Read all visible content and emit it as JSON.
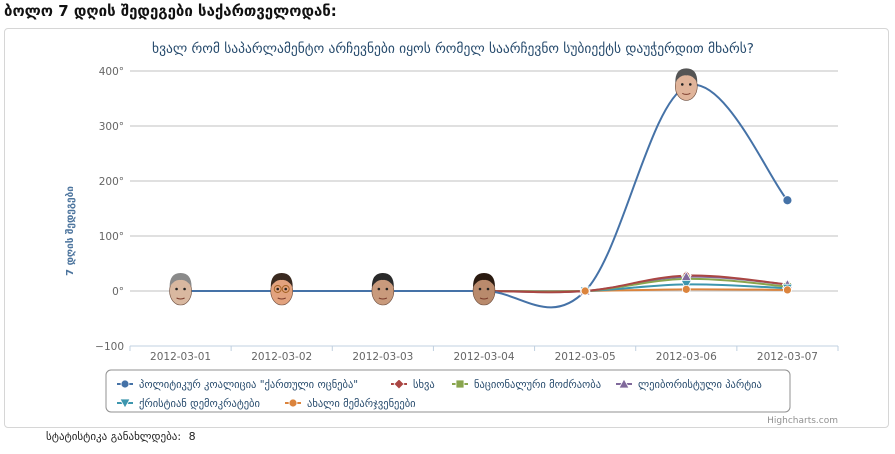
{
  "page": {
    "heading": "ბოლო 7 დღის შედეგები საქართველოდან:",
    "stats_label": "სტატისტიკა განახლდება:",
    "stats_value": "8"
  },
  "chart_data": {
    "type": "line",
    "title": "ხვალ რომ საპარლამენტო არჩევნები იყოს რომელ საარჩევნო სუბიექტს დაუჭერდით მხარს?",
    "ylabel": "7 დღის შედეგები",
    "xlabel": "",
    "ylim": [
      -100,
      400
    ],
    "yticks": [
      -100,
      0,
      100,
      200,
      300,
      400
    ],
    "ytick_labels": [
      "−100",
      "0°",
      "100°",
      "200°",
      "300°",
      "400°"
    ],
    "categories": [
      "2012-03-01",
      "2012-03-02",
      "2012-03-03",
      "2012-03-04",
      "2012-03-05",
      "2012-03-06",
      "2012-03-07"
    ],
    "grid": true,
    "legend_position": "bottom",
    "credit": "Highcharts.com",
    "series": [
      {
        "name": "პოლიტიკურ კოალიცია \"ქართული ოცნება\"",
        "color": "#4572A7",
        "marker": "circle",
        "values": [
          0,
          0,
          0,
          0,
          0,
          372,
          165
        ]
      },
      {
        "name": "სხვა",
        "color": "#AA4643",
        "marker": "diamond",
        "values": [
          0,
          0,
          0,
          0,
          0,
          28,
          12
        ]
      },
      {
        "name": "ნაციონალური მოძრაობა",
        "color": "#89A54E",
        "marker": "square",
        "values": [
          0,
          0,
          0,
          0,
          0,
          22,
          8
        ]
      },
      {
        "name": "ლეიბორისტული პარტია",
        "color": "#80699B",
        "marker": "triangle",
        "values": [
          0,
          0,
          0,
          0,
          0,
          26,
          12
        ]
      },
      {
        "name": "ქრისტიან დემოკრატები",
        "color": "#3D96AE",
        "marker": "triangle-down",
        "values": [
          0,
          0,
          0,
          0,
          0,
          12,
          5
        ]
      },
      {
        "name": "ახალი მემარჯვენეები",
        "color": "#DB843D",
        "marker": "circle",
        "values": [
          0,
          0,
          0,
          0,
          0,
          3,
          2
        ]
      }
    ],
    "point_images": [
      {
        "category": "2012-03-01",
        "series": 0,
        "icon": "face-icon"
      },
      {
        "category": "2012-03-02",
        "series": 0,
        "icon": "face-icon"
      },
      {
        "category": "2012-03-03",
        "series": 0,
        "icon": "face-icon"
      },
      {
        "category": "2012-03-04",
        "series": 0,
        "icon": "face-icon"
      },
      {
        "category": "2012-03-06",
        "series": 0,
        "icon": "face-icon"
      }
    ]
  }
}
